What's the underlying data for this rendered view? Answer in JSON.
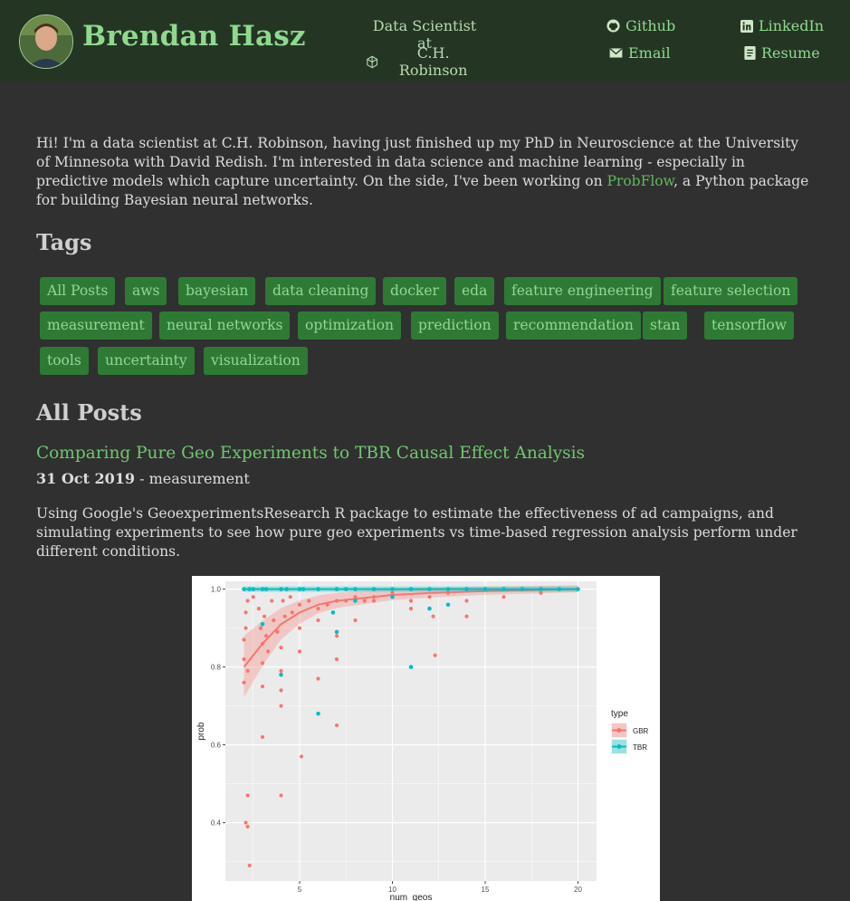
{
  "header": {
    "name": "Brendan Hasz",
    "job_line1": "Data Scientist at",
    "job_line2": "C.H. Robinson",
    "github": "Github",
    "email": "Email",
    "linkedin": "LinkedIn",
    "resume": "Resume"
  },
  "intro": {
    "text_before": "Hi! I'm a data scientist at C.H. Robinson, having just finished up my PhD in Neuroscience at the University of Minnesota with David Redish. I'm interested in data science and machine learning - especially in predictive models which capture uncertainty. On the side, I've been working on ",
    "link": "ProbFlow",
    "text_after": ", a Python package for building Bayesian neural networks."
  },
  "tags_heading": "Tags",
  "tags": [
    "All Posts",
    "aws",
    "bayesian",
    "data cleaning",
    "docker",
    "eda",
    "feature engineering",
    "feature selection",
    "measurement",
    "neural networks",
    "optimization",
    "prediction",
    "recommendation",
    "stan",
    "tensorflow",
    "tools",
    "uncertainty",
    "visualization"
  ],
  "posts_heading": "All Posts",
  "post": {
    "title": "Comparing Pure Geo Experiments to TBR Causal Effect Analysis",
    "date": "31 Oct 2019",
    "separator": " - ",
    "tag": "measurement",
    "description": "Using Google's GeoexperimentsResearch R package to estimate the effectiveness of ad campaigns, and simulating experiments to see how pure geo experiments vs time-based regression analysis perform under different conditions."
  },
  "chart_data": {
    "type": "scatter",
    "xlabel": "num_geos",
    "ylabel": "prob",
    "xlim": [
      1,
      21
    ],
    "ylim": [
      0.25,
      1.02
    ],
    "xticks": [
      "5",
      "10",
      "15",
      "20"
    ],
    "yticks": [
      "0.4",
      "0.6",
      "0.8",
      "1.0"
    ],
    "grid": true,
    "legend": {
      "title": "type",
      "position": "right",
      "entries": [
        "GBR",
        "TBR"
      ]
    },
    "colors": {
      "GBR": "#f8766d",
      "TBR": "#00bfc4",
      "panel": "#ebebeb"
    },
    "series": [
      {
        "name": "GBR",
        "points": [
          [
            2,
            0.76
          ],
          [
            2,
            0.82
          ],
          [
            2,
            0.87
          ],
          [
            2.1,
            0.9
          ],
          [
            2.1,
            0.94
          ],
          [
            2.2,
            0.97
          ],
          [
            2.1,
            0.4
          ],
          [
            2.2,
            0.39
          ],
          [
            2.2,
            0.47
          ],
          [
            2.3,
            0.29
          ],
          [
            2.2,
            0.79
          ],
          [
            2.5,
            0.98
          ],
          [
            2.8,
            0.95
          ],
          [
            2.9,
            0.9
          ],
          [
            3,
            0.86
          ],
          [
            3,
            0.81
          ],
          [
            3,
            0.75
          ],
          [
            3.1,
            0.93
          ],
          [
            3.2,
            0.88
          ],
          [
            3.3,
            0.84
          ],
          [
            3,
            0.62
          ],
          [
            3.5,
            0.97
          ],
          [
            3.6,
            0.92
          ],
          [
            3.8,
            0.89
          ],
          [
            4,
            0.85
          ],
          [
            4,
            0.79
          ],
          [
            4,
            0.74
          ],
          [
            4,
            0.7
          ],
          [
            4.1,
            0.97
          ],
          [
            4.2,
            0.93
          ],
          [
            4,
            0.47
          ],
          [
            4.5,
            0.98
          ],
          [
            4.6,
            0.94
          ],
          [
            5,
            0.96
          ],
          [
            5,
            0.9
          ],
          [
            5,
            0.84
          ],
          [
            5.1,
            0.57
          ],
          [
            5.5,
            0.97
          ],
          [
            6,
            0.95
          ],
          [
            6,
            0.92
          ],
          [
            6,
            0.77
          ],
          [
            6.5,
            0.96
          ],
          [
            7,
            0.97
          ],
          [
            7,
            0.88
          ],
          [
            7,
            0.82
          ],
          [
            7,
            0.65
          ],
          [
            7.5,
            0.97
          ],
          [
            8,
            0.98
          ],
          [
            8,
            0.92
          ],
          [
            8.5,
            0.97
          ],
          [
            9,
            0.98
          ],
          [
            9,
            0.97
          ],
          [
            10,
            0.99
          ],
          [
            11,
            0.97
          ],
          [
            11,
            0.95
          ],
          [
            12,
            0.98
          ],
          [
            12.2,
            0.93
          ],
          [
            12.3,
            0.83
          ],
          [
            13,
            0.99
          ],
          [
            14,
            0.97
          ],
          [
            14,
            0.93
          ],
          [
            16,
            0.98
          ],
          [
            18,
            0.99
          ],
          [
            20,
            1.0
          ]
        ],
        "fit": [
          [
            2,
            0.8
          ],
          [
            3,
            0.86
          ],
          [
            4,
            0.91
          ],
          [
            5,
            0.94
          ],
          [
            6,
            0.96
          ],
          [
            7,
            0.97
          ],
          [
            8,
            0.975
          ],
          [
            10,
            0.985
          ],
          [
            12,
            0.99
          ],
          [
            15,
            0.995
          ],
          [
            20,
            1.0
          ]
        ]
      },
      {
        "name": "TBR",
        "points": [
          [
            2,
            1.0
          ],
          [
            2.3,
            1.0
          ],
          [
            2.5,
            1.0
          ],
          [
            3,
            1.0
          ],
          [
            3.2,
            1.0
          ],
          [
            4,
            1.0
          ],
          [
            4.3,
            1.0
          ],
          [
            5,
            1.0
          ],
          [
            5.2,
            1.0
          ],
          [
            6,
            1.0
          ],
          [
            7,
            1.0
          ],
          [
            7.5,
            1.0
          ],
          [
            8,
            1.0
          ],
          [
            9,
            1.0
          ],
          [
            10,
            1.0
          ],
          [
            11,
            1.0
          ],
          [
            12,
            1.0
          ],
          [
            13,
            1.0
          ],
          [
            14,
            1.0
          ],
          [
            15,
            1.0
          ],
          [
            16,
            1.0
          ],
          [
            17,
            1.0
          ],
          [
            18,
            1.0
          ],
          [
            19,
            1.0
          ],
          [
            20,
            1.0
          ],
          [
            3,
            0.91
          ],
          [
            4,
            0.78
          ],
          [
            6,
            0.68
          ],
          [
            6.8,
            0.94
          ],
          [
            7,
            0.89
          ],
          [
            8,
            0.97
          ],
          [
            10,
            0.98
          ],
          [
            11,
            0.8
          ],
          [
            12,
            0.95
          ],
          [
            13,
            0.96
          ]
        ]
      }
    ]
  }
}
